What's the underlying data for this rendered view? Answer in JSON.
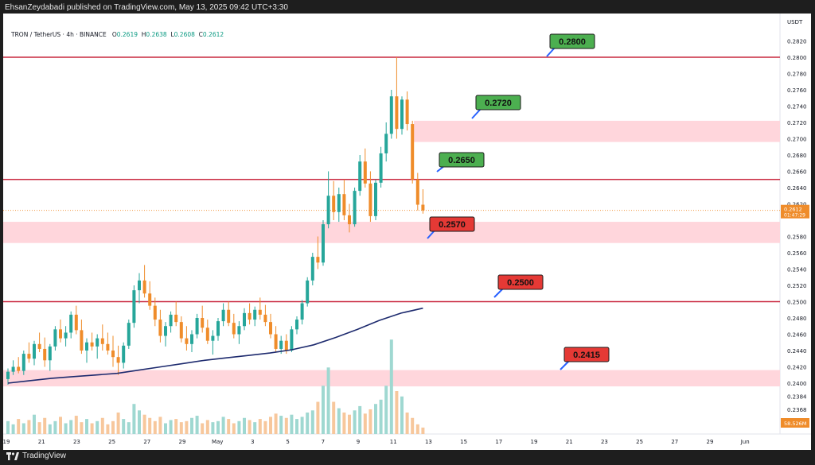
{
  "header": {
    "published": "EhsanZeydabadi published on TradingView.com, May 13, 2025 09:42 UTC+3:30"
  },
  "legend": {
    "symbol": "TRON / TetherUS · 4h · BINANCE",
    "open_label": "O",
    "open": "0.2619",
    "high_label": "H",
    "high": "0.2638",
    "low_label": "L",
    "low": "0.2608",
    "close_label": "C",
    "close": "0.2612"
  },
  "footer": {
    "brand": "TradingView"
  },
  "colors": {
    "up": "#26a69a",
    "down": "#ef8c2a",
    "ma": "#1d2a6e",
    "hline": "#c9283f",
    "zone": "#ffd6dc",
    "green_box": "#4caf50",
    "red_box": "#e53935",
    "callout": "#2962ff"
  },
  "chart_data": {
    "type": "candlestick",
    "y_axis": {
      "unit": "USDT",
      "min": 0.2348,
      "max": 0.2832,
      "ticks": [
        "0.2820",
        "0.2800",
        "0.2780",
        "0.2760",
        "0.2740",
        "0.2720",
        "0.2700",
        "0.2680",
        "0.2660",
        "0.2640",
        "0.2620",
        "0.2580",
        "0.2560",
        "0.2540",
        "0.2520",
        "0.2500",
        "0.2480",
        "0.2460",
        "0.2440",
        "0.2420",
        "0.2400",
        "0.2384",
        "0.2368"
      ]
    },
    "x_axis": {
      "ticks": [
        "19",
        "21",
        "23",
        "25",
        "27",
        "29",
        "May",
        "3",
        "5",
        "7",
        "9",
        "11",
        "13",
        "15",
        "17",
        "19",
        "21",
        "23",
        "25",
        "27",
        "29",
        "Jun"
      ]
    },
    "last_price": {
      "value": "0.2612",
      "countdown": "01:47:29"
    },
    "volume_label": "58.526M",
    "horizontal_lines": [
      0.28,
      0.265,
      0.25
    ],
    "zones": [
      {
        "top": 0.2722,
        "bottom": 0.2696
      },
      {
        "top": 0.2598,
        "bottom": 0.2572
      },
      {
        "top": 0.2416,
        "bottom": 0.2396
      }
    ],
    "levels": [
      {
        "label": "0.2800",
        "kind": "resistance",
        "value": 0.28
      },
      {
        "label": "0.2720",
        "kind": "resistance",
        "value": 0.272
      },
      {
        "label": "0.2650",
        "kind": "resistance",
        "value": 0.265
      },
      {
        "label": "0.2570",
        "kind": "support",
        "value": 0.257
      },
      {
        "label": "0.2500",
        "kind": "support",
        "value": 0.25
      },
      {
        "label": "0.2415",
        "kind": "support",
        "value": 0.2415
      }
    ],
    "ma": [
      0.24,
      0.2403,
      0.2406,
      0.2408,
      0.241,
      0.2412,
      0.2416,
      0.242,
      0.2424,
      0.2428,
      0.2431,
      0.2434,
      0.2437,
      0.2441,
      0.2447,
      0.2456,
      0.2466,
      0.2477,
      0.2486,
      0.2492
    ],
    "candles": [
      [
        0.2405,
        0.2418,
        0.2398,
        0.2414
      ],
      [
        0.2414,
        0.2428,
        0.241,
        0.242
      ],
      [
        0.242,
        0.2432,
        0.2412,
        0.2415
      ],
      [
        0.2415,
        0.244,
        0.241,
        0.2436
      ],
      [
        0.2436,
        0.245,
        0.2425,
        0.243
      ],
      [
        0.243,
        0.2452,
        0.2422,
        0.2448
      ],
      [
        0.2448,
        0.2462,
        0.2438,
        0.2442
      ],
      [
        0.2442,
        0.2456,
        0.242,
        0.2428
      ],
      [
        0.2428,
        0.2448,
        0.2415,
        0.2445
      ],
      [
        0.2445,
        0.247,
        0.244,
        0.2466
      ],
      [
        0.2466,
        0.2478,
        0.245,
        0.2455
      ],
      [
        0.2455,
        0.247,
        0.2445,
        0.2462
      ],
      [
        0.2462,
        0.2488,
        0.2455,
        0.2484
      ],
      [
        0.2484,
        0.2495,
        0.246,
        0.2465
      ],
      [
        0.2465,
        0.2478,
        0.2436,
        0.244
      ],
      [
        0.244,
        0.2455,
        0.2425,
        0.245
      ],
      [
        0.245,
        0.2462,
        0.244,
        0.2445
      ],
      [
        0.2445,
        0.246,
        0.243,
        0.2455
      ],
      [
        0.2455,
        0.2472,
        0.244,
        0.2448
      ],
      [
        0.2448,
        0.2462,
        0.2435,
        0.244
      ],
      [
        0.244,
        0.2458,
        0.242,
        0.2432
      ],
      [
        0.2432,
        0.2446,
        0.241,
        0.2425
      ],
      [
        0.2425,
        0.245,
        0.2418,
        0.2446
      ],
      [
        0.2446,
        0.2478,
        0.2442,
        0.2474
      ],
      [
        0.2474,
        0.252,
        0.2468,
        0.2514
      ],
      [
        0.2514,
        0.2535,
        0.2498,
        0.2526
      ],
      [
        0.2526,
        0.2545,
        0.2505,
        0.251
      ],
      [
        0.251,
        0.2525,
        0.249,
        0.2495
      ],
      [
        0.2495,
        0.2505,
        0.247,
        0.2478
      ],
      [
        0.2478,
        0.249,
        0.245,
        0.2458
      ],
      [
        0.2458,
        0.2475,
        0.2445,
        0.247
      ],
      [
        0.247,
        0.2488,
        0.2462,
        0.2484
      ],
      [
        0.2484,
        0.25,
        0.247,
        0.2475
      ],
      [
        0.2475,
        0.2482,
        0.245,
        0.2455
      ],
      [
        0.2455,
        0.247,
        0.244,
        0.2448
      ],
      [
        0.2448,
        0.2465,
        0.2438,
        0.246
      ],
      [
        0.246,
        0.2485,
        0.2455,
        0.248
      ],
      [
        0.248,
        0.2495,
        0.2462,
        0.2468
      ],
      [
        0.2468,
        0.2478,
        0.2448,
        0.2452
      ],
      [
        0.2452,
        0.2465,
        0.2435,
        0.2458
      ],
      [
        0.2458,
        0.248,
        0.2452,
        0.2476
      ],
      [
        0.2476,
        0.2498,
        0.247,
        0.249
      ],
      [
        0.249,
        0.25,
        0.247,
        0.2474
      ],
      [
        0.2474,
        0.2485,
        0.2455,
        0.246
      ],
      [
        0.246,
        0.2476,
        0.2448,
        0.247
      ],
      [
        0.247,
        0.2492,
        0.2465,
        0.2486
      ],
      [
        0.2486,
        0.2498,
        0.2472,
        0.2478
      ],
      [
        0.2478,
        0.2494,
        0.247,
        0.249
      ],
      [
        0.249,
        0.2505,
        0.2478,
        0.2484
      ],
      [
        0.2484,
        0.2496,
        0.247,
        0.2475
      ],
      [
        0.2475,
        0.2485,
        0.2455,
        0.246
      ],
      [
        0.246,
        0.247,
        0.2438,
        0.2442
      ],
      [
        0.2442,
        0.2458,
        0.2436,
        0.2452
      ],
      [
        0.2452,
        0.246,
        0.2436,
        0.244
      ],
      [
        0.244,
        0.247,
        0.2438,
        0.2466
      ],
      [
        0.2466,
        0.2482,
        0.246,
        0.2478
      ],
      [
        0.2478,
        0.2502,
        0.2472,
        0.2498
      ],
      [
        0.2498,
        0.253,
        0.2494,
        0.2526
      ],
      [
        0.2526,
        0.256,
        0.252,
        0.2555
      ],
      [
        0.2555,
        0.258,
        0.254,
        0.2548
      ],
      [
        0.2548,
        0.26,
        0.2544,
        0.2595
      ],
      [
        0.2595,
        0.266,
        0.259,
        0.263
      ],
      [
        0.263,
        0.2648,
        0.26,
        0.261
      ],
      [
        0.261,
        0.264,
        0.2598,
        0.2632
      ],
      [
        0.2632,
        0.265,
        0.26,
        0.2606
      ],
      [
        0.2606,
        0.262,
        0.2585,
        0.2595
      ],
      [
        0.2595,
        0.264,
        0.2592,
        0.2636
      ],
      [
        0.2636,
        0.268,
        0.263,
        0.2672
      ],
      [
        0.2672,
        0.2688,
        0.264,
        0.2645
      ],
      [
        0.2645,
        0.266,
        0.2598,
        0.2605
      ],
      [
        0.2605,
        0.265,
        0.26,
        0.2646
      ],
      [
        0.2646,
        0.269,
        0.264,
        0.2682
      ],
      [
        0.2682,
        0.272,
        0.2672,
        0.2706
      ],
      [
        0.2706,
        0.276,
        0.27,
        0.2752
      ],
      [
        0.2752,
        0.28,
        0.27,
        0.2712
      ],
      [
        0.2712,
        0.2752,
        0.2705,
        0.2748
      ],
      [
        0.2748,
        0.2758,
        0.271,
        0.2718
      ],
      [
        0.2718,
        0.2722,
        0.2645,
        0.265
      ],
      [
        0.265,
        0.2658,
        0.2612,
        0.2619
      ],
      [
        0.2619,
        0.2638,
        0.2608,
        0.2612
      ]
    ],
    "volumes": [
      12,
      9,
      14,
      10,
      13,
      18,
      11,
      15,
      9,
      12,
      16,
      10,
      13,
      17,
      11,
      14,
      10,
      12,
      15,
      9,
      12,
      20,
      14,
      11,
      28,
      22,
      18,
      15,
      12,
      16,
      10,
      13,
      14,
      11,
      12,
      15,
      17,
      10,
      13,
      11,
      12,
      16,
      14,
      10,
      12,
      15,
      13,
      11,
      14,
      12,
      16,
      19,
      17,
      15,
      18,
      14,
      16,
      20,
      22,
      30,
      45,
      62,
      30,
      24,
      20,
      18,
      22,
      26,
      19,
      23,
      28,
      32,
      45,
      88,
      40,
      35,
      20,
      15,
      9,
      6
    ]
  }
}
